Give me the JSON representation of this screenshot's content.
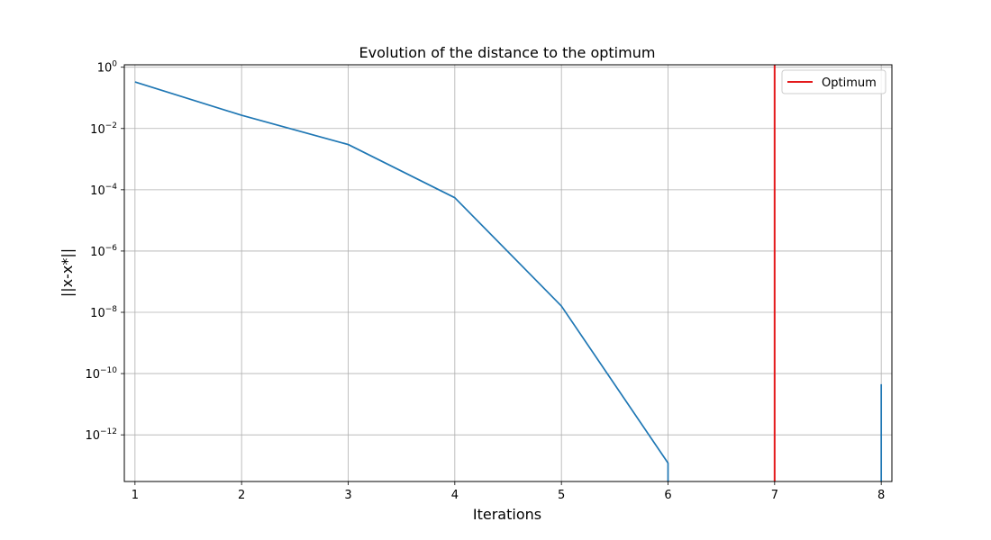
{
  "chart_data": {
    "type": "line",
    "title": "Evolution of the distance to the optimum",
    "xlabel": "Iterations",
    "ylabel": "||x-x*||",
    "xlim": [
      0.9,
      8.1
    ],
    "ylim": [
      3e-14,
      1.2
    ],
    "yscale": "log",
    "grid": true,
    "legend_position": "top-right",
    "x_ticks": [
      1,
      2,
      3,
      4,
      5,
      6,
      7,
      8
    ],
    "y_ticks": [
      {
        "value": 1,
        "base": "10",
        "exp": "0"
      },
      {
        "value": 0.01,
        "base": "10",
        "exp": "−2"
      },
      {
        "value": 0.0001,
        "base": "10",
        "exp": "−4"
      },
      {
        "value": 1e-06,
        "base": "10",
        "exp": "−6"
      },
      {
        "value": 1e-08,
        "base": "10",
        "exp": "−8"
      },
      {
        "value": 1e-10,
        "base": "10",
        "exp": "−10"
      },
      {
        "value": 1e-12,
        "base": "10",
        "exp": "−12"
      }
    ],
    "series": [
      {
        "color": "#1f77b4",
        "x": [
          1,
          2,
          3,
          4,
          5,
          6,
          6
        ],
        "y": [
          0.33,
          0.027,
          0.003,
          5.5e-05,
          1.6e-08,
          1.2e-13,
          3e-14
        ]
      },
      {
        "color": "#1f77b4",
        "x": [
          8,
          8
        ],
        "y": [
          3e-14,
          4.5e-11
        ]
      }
    ],
    "vlines": [
      {
        "name": "Optimum",
        "x": 7,
        "color": "#e41a1c"
      }
    ],
    "legend": [
      {
        "label": "Optimum",
        "color": "#e41a1c"
      }
    ]
  }
}
